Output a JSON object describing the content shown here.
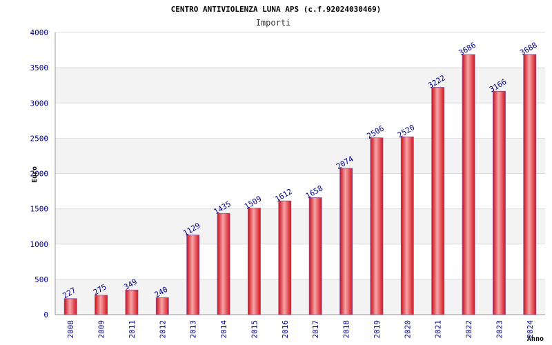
{
  "chart_data": {
    "type": "bar",
    "title": "CENTRO ANTIVIOLENZA LUNA APS (c.f.92024030469)",
    "subtitle": "Importi",
    "xlabel": "Anno",
    "ylabel": "Euro",
    "ylim": [
      0,
      4000
    ],
    "yticks": [
      0,
      500,
      1000,
      1500,
      2000,
      2500,
      3000,
      3500,
      4000
    ],
    "categories": [
      "2008",
      "2009",
      "2011",
      "2012",
      "2013",
      "2014",
      "2015",
      "2016",
      "2017",
      "2018",
      "2019",
      "2020",
      "2021",
      "2022",
      "2023",
      "2024"
    ],
    "values": [
      227,
      275,
      349,
      240,
      1129,
      1435,
      1509,
      1612,
      1658,
      2074,
      2506,
      2520,
      3222,
      3686,
      3166,
      3688
    ],
    "grid": true,
    "legend": "none",
    "colors": {
      "bar": "#e8202a",
      "bar_highlight": "#f7a5a8",
      "bar_border": "#8a4a8a",
      "band": "#f3f3f3",
      "grid": "#dddddd",
      "tick_text": "#00008b",
      "title_text": "#000000"
    }
  }
}
